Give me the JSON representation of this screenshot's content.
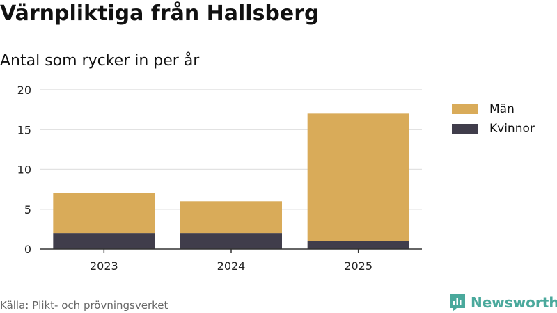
{
  "title": "Värnpliktiga från Hallsberg",
  "subtitle": "Antal som rycker in per år",
  "source": "Källa: Plikt- och prövningsverket",
  "brand": "Newsworthy",
  "colors": {
    "man": "#d9ab59",
    "kvinnor": "#403d4b",
    "brand": "#4aa99c"
  },
  "chart_data": {
    "type": "bar",
    "stacked": true,
    "categories": [
      "2023",
      "2024",
      "2025"
    ],
    "series": [
      {
        "name": "Kvinnor",
        "values": [
          2,
          2,
          1
        ]
      },
      {
        "name": "Män",
        "values": [
          5,
          4,
          16
        ]
      }
    ],
    "ylim": [
      0,
      20
    ],
    "yticks": [
      0,
      5,
      10,
      15,
      20
    ],
    "grid": true,
    "legend": [
      {
        "name": "Män"
      },
      {
        "name": "Kvinnor"
      }
    ],
    "legend_position": "right"
  }
}
